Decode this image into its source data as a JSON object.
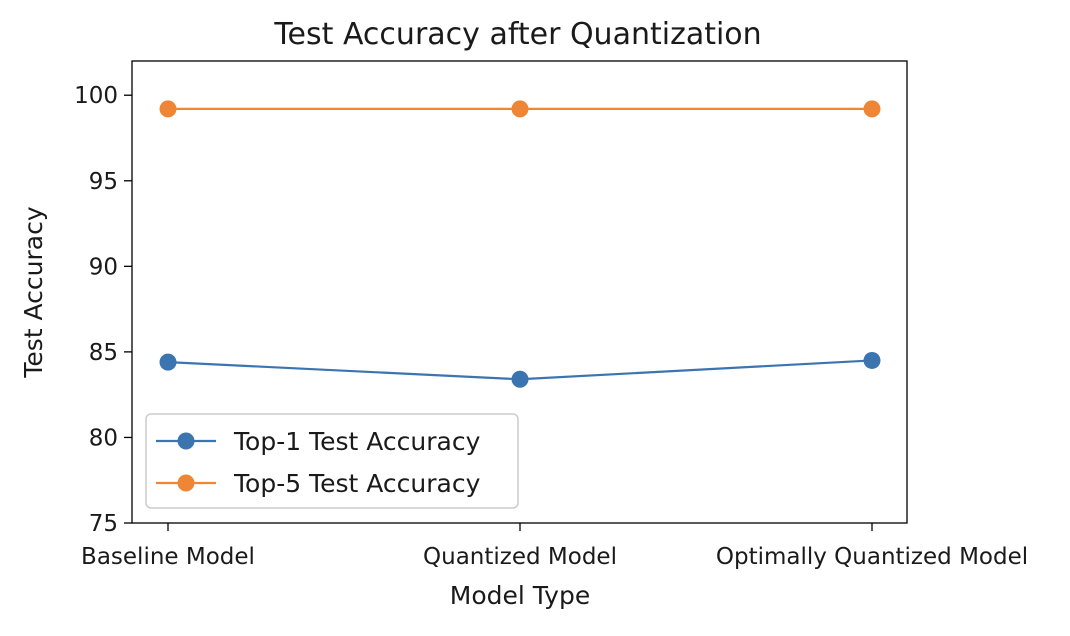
{
  "chart_data": {
    "type": "line",
    "title": "Test Accuracy after Quantization",
    "xlabel": "Model Type",
    "ylabel": "Test Accuracy",
    "categories": [
      "Baseline Model",
      "Quantized Model",
      "Optimally Quantized Model"
    ],
    "series": [
      {
        "name": "Top-1 Test Accuracy",
        "values": [
          84.4,
          83.4,
          84.5
        ],
        "color": "#3b75af",
        "marker": "circle"
      },
      {
        "name": "Top-5 Test Accuracy",
        "values": [
          99.2,
          99.2,
          99.2
        ],
        "color": "#ef8636",
        "marker": "circle"
      }
    ],
    "ylim": [
      75,
      102
    ],
    "yticks": [
      75,
      80,
      85,
      90,
      95,
      100
    ],
    "grid": false,
    "legend_position": "lower-left"
  }
}
